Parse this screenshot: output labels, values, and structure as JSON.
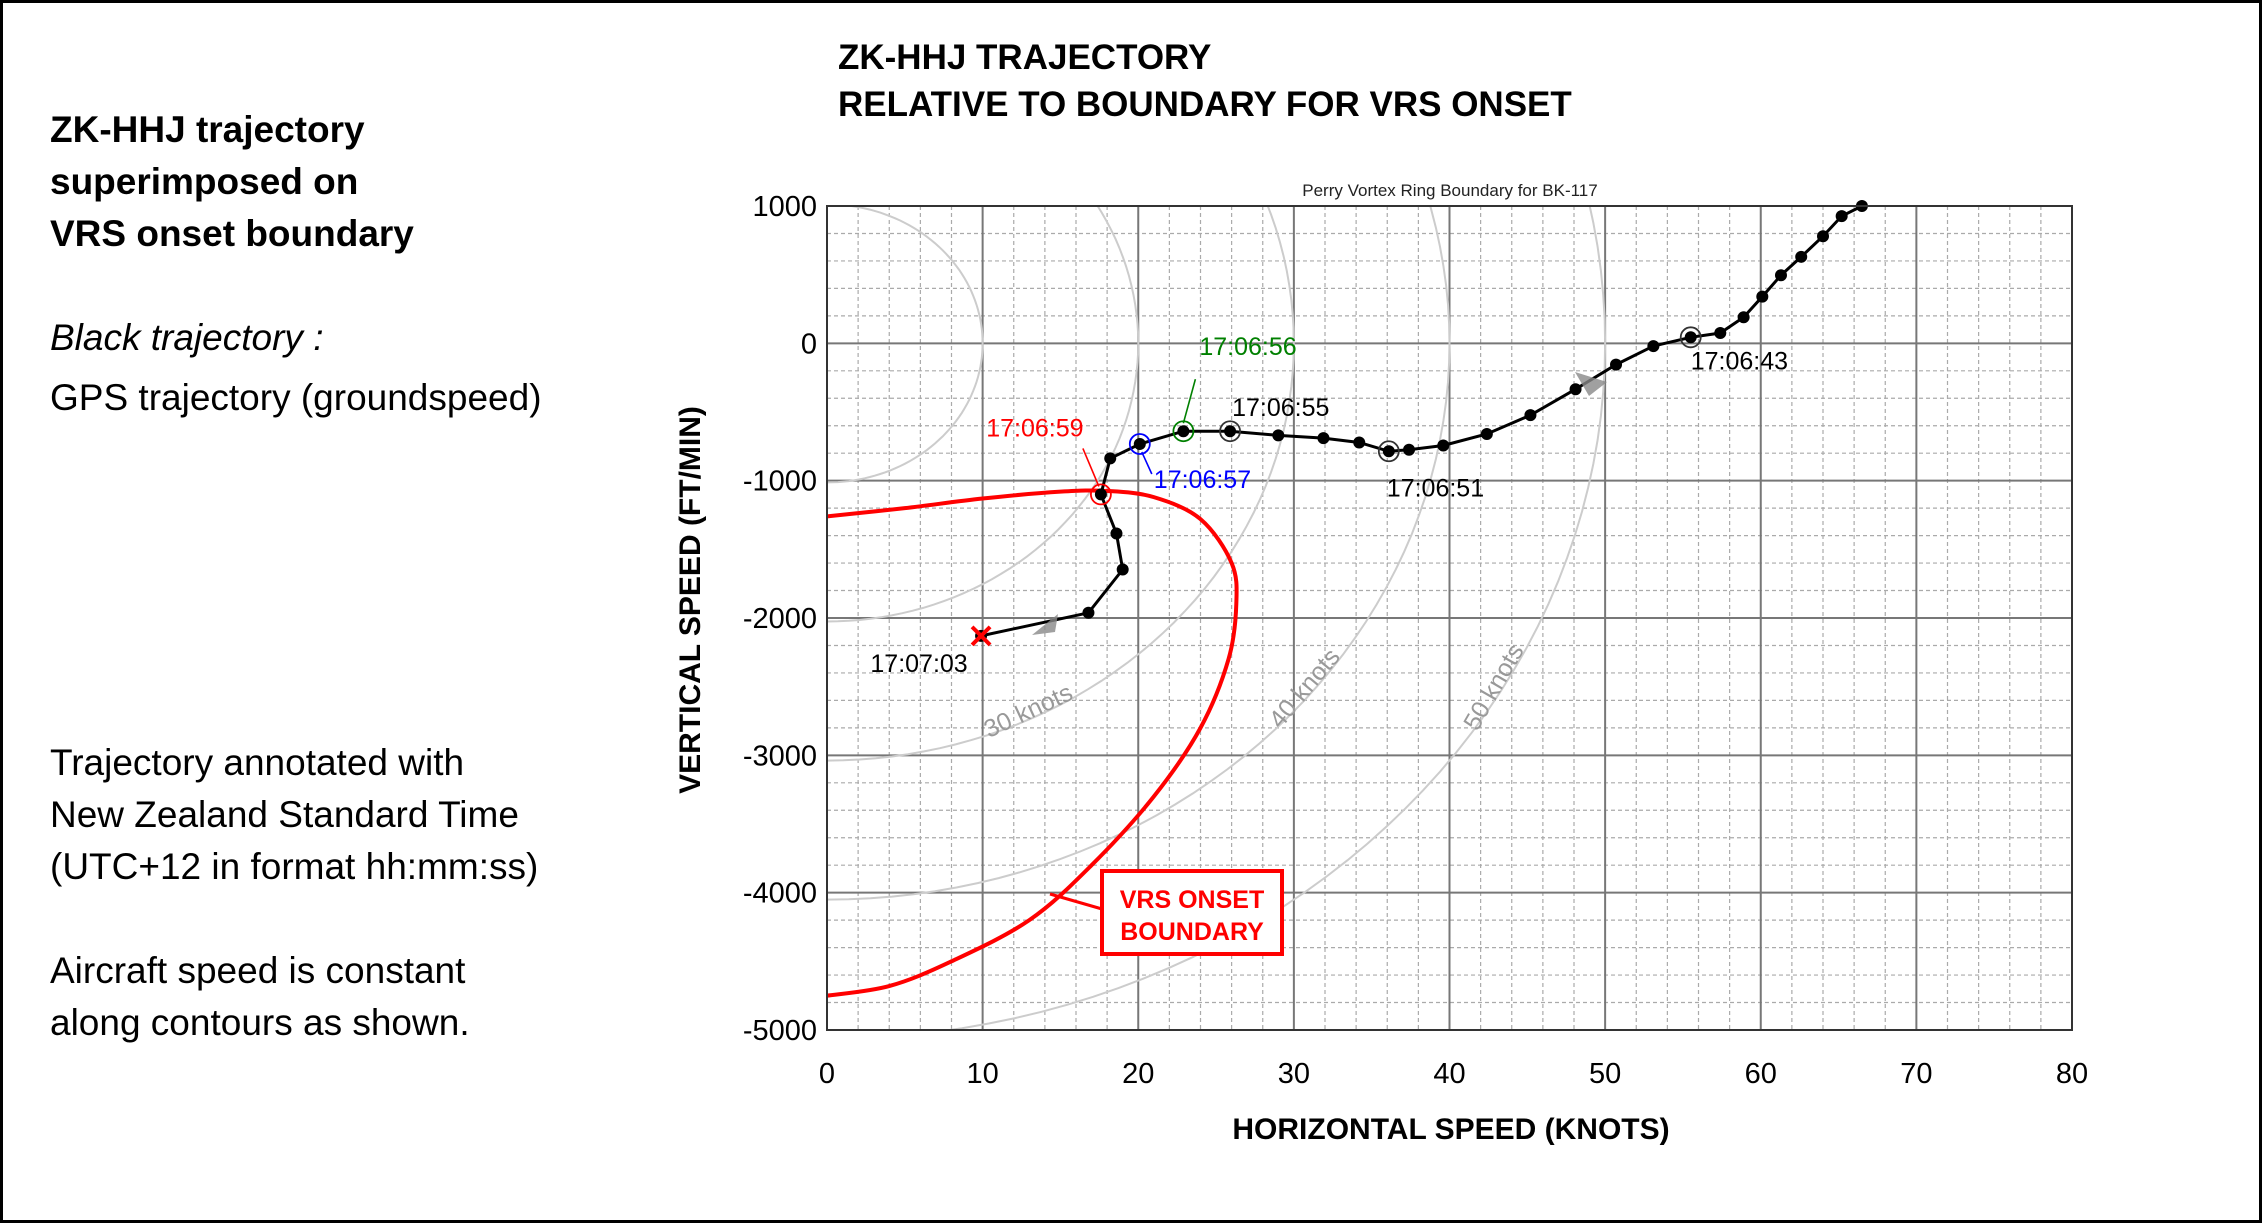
{
  "left_panel": {
    "heading": [
      "ZK-HHJ trajectory",
      "superimposed on",
      "VRS onset boundary"
    ],
    "legend_title": "Black trajectory :",
    "legend_text": "GPS trajectory (groundspeed)",
    "note1": [
      "Trajectory annotated with",
      "New Zealand Standard Time",
      "(UTC+12 in format hh:mm:ss)"
    ],
    "note2": [
      "Aircraft speed is constant",
      "along contours as shown."
    ]
  },
  "header": {
    "title": [
      "ZK-HHJ TRAJECTORY",
      "RELATIVE TO BOUNDARY FOR VRS ONSET"
    ]
  },
  "chart_data": {
    "type": "line",
    "title": "Perry Vortex Ring Boundary for BK-117",
    "xlabel": "HORIZONTAL SPEED (KNOTS)",
    "ylabel": "VERTICAL SPEED (FT/MIN)",
    "xlim": [
      0,
      80
    ],
    "ylim": [
      -5000,
      1000
    ],
    "xticks": [
      0,
      10,
      20,
      30,
      40,
      50,
      60,
      70,
      80
    ],
    "yticks": [
      1000,
      0,
      -1000,
      -2000,
      -3000,
      -4000,
      -5000
    ],
    "grid": true,
    "colors": {
      "trajectory": "#000000",
      "boundary": "#ff0000",
      "contours": "#cccccc",
      "grid": "#999999"
    },
    "trajectory": {
      "x": [
        66.5,
        65.2,
        64.0,
        62.6,
        61.3,
        60.1,
        58.9,
        57.4,
        55.5,
        53.1,
        50.7,
        48.1,
        45.2,
        42.4,
        39.6,
        37.4,
        36.1,
        34.2,
        31.9,
        29.0,
        25.9,
        22.9,
        20.1,
        18.2,
        17.6,
        18.6,
        19.0,
        16.8,
        9.9
      ],
      "y": [
        1000,
        926,
        780,
        630,
        496,
        340,
        190,
        75,
        44,
        -20,
        -155,
        -334,
        -523,
        -660,
        -744,
        -775,
        -786,
        -722,
        -690,
        -670,
        -640,
        -640,
        -733,
        -838,
        -1100,
        -1385,
        -1647,
        -1962,
        -2130
      ]
    },
    "annotations": [
      {
        "text": "17:06:43",
        "point": 8,
        "color": "#000000"
      },
      {
        "text": "17:06:51",
        "point": 16,
        "color": "#000000"
      },
      {
        "text": "17:06:55",
        "point": 20,
        "color": "#000000"
      },
      {
        "text": "17:06:56",
        "point": 21,
        "color": "#008000"
      },
      {
        "text": "17:06:57",
        "point": 22,
        "color": "#0000ff"
      },
      {
        "text": "17:06:59",
        "point": 24,
        "color": "#ff0000"
      },
      {
        "text": "17:07:03",
        "point": 28,
        "color": "#000000"
      }
    ],
    "vrs_boundary": {
      "label": [
        "VRS ONSET",
        "BOUNDARY"
      ],
      "x": [
        0,
        5,
        10,
        15,
        18,
        21,
        24,
        26,
        26.3,
        25.8,
        24,
        21,
        17,
        13,
        8,
        4,
        0
      ],
      "y": [
        -1260,
        -1200,
        -1130,
        -1080,
        -1075,
        -1120,
        -1280,
        -1600,
        -1900,
        -2300,
        -2800,
        -3300,
        -3800,
        -4200,
        -4500,
        -4680,
        -4750
      ]
    },
    "speed_contours": {
      "knots": [
        10,
        20,
        30,
        40,
        50
      ],
      "labels": [
        {
          "knots": 30,
          "text": "30 knots"
        },
        {
          "knots": 40,
          "text": "40 knots"
        },
        {
          "knots": 50,
          "text": "50 knots"
        }
      ]
    }
  }
}
